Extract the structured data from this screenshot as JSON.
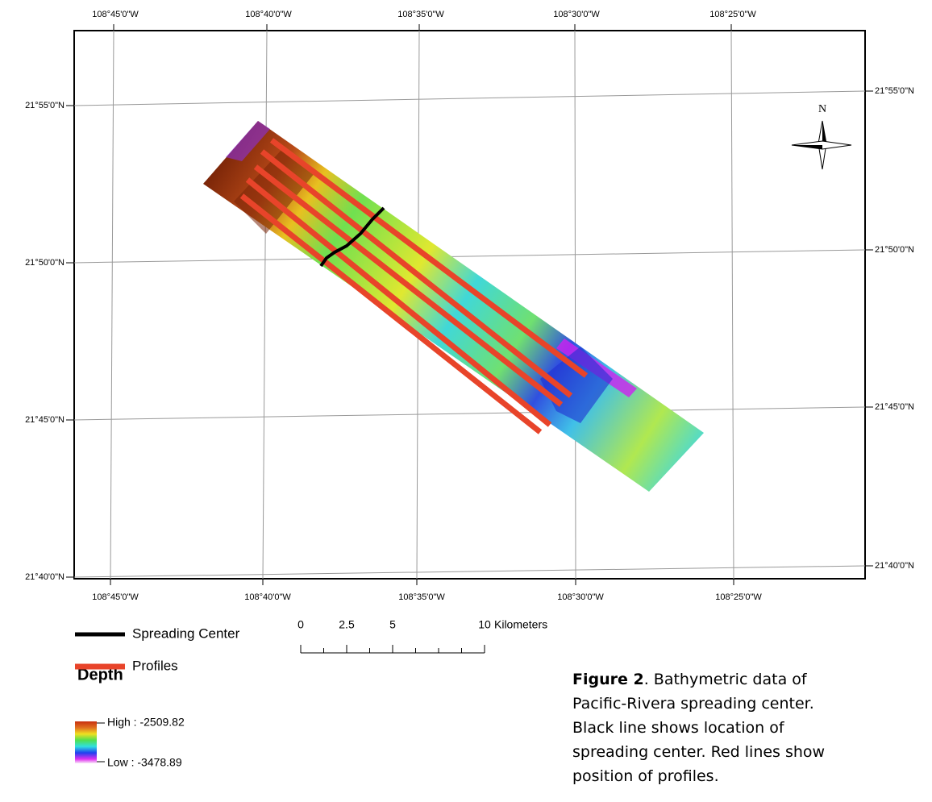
{
  "map": {
    "top_labels": [
      "108°45'0\"W",
      "108°40'0\"W",
      "108°35'0\"W",
      "108°30'0\"W",
      "108°25'0\"W"
    ],
    "bottom_labels": [
      "108°45'0\"W",
      "108°40'0\"W",
      "108°35'0\"W",
      "108°30'0\"W",
      "108°25'0\"W"
    ],
    "left_labels": [
      "21°55'0\"N",
      "21°50'0\"N",
      "21°45'0\"N",
      "21°40'0\"N"
    ],
    "right_labels": [
      "21°55'0\"N",
      "21°50'0\"N",
      "21°45'0\"N",
      "21°40'0\"N"
    ],
    "north_label": "N",
    "legend": {
      "items": [
        {
          "label": "Spreading Center",
          "color": "#000000"
        },
        {
          "label": "Profiles",
          "color": "#e8442a"
        }
      ],
      "depth_title": "Depth",
      "high": "High : -2509.82",
      "low": "Low : -3478.89"
    },
    "scale_bar": {
      "ticks": [
        0,
        2.5,
        5,
        10
      ],
      "unit": "Kilometers"
    },
    "caption": {
      "label": "Figure 2",
      "text": ". Bathymetric data of Pacific-Rivera spreading center. Black line shows location of spreading center. Red lines show position of profiles."
    }
  }
}
